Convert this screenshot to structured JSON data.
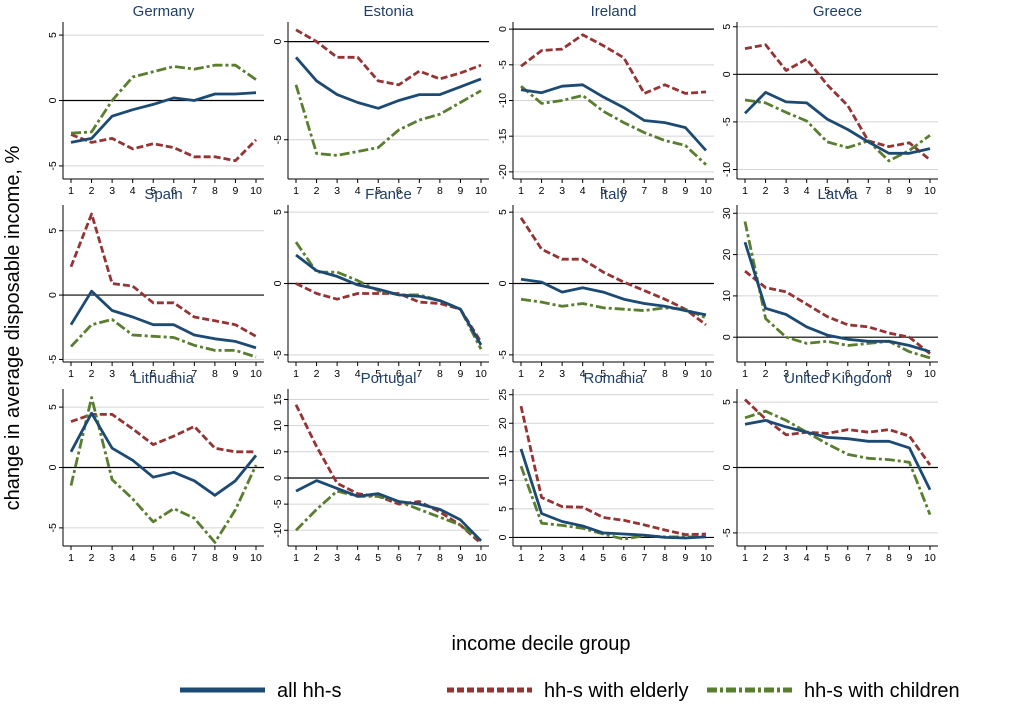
{
  "chart_data": {
    "type": "line",
    "x": [
      1,
      2,
      3,
      4,
      5,
      6,
      7,
      8,
      9,
      10
    ],
    "xlabel": "income decile group",
    "ylabel": "change in average disposable income, %",
    "legend": {
      "placement": "bottom",
      "entries": [
        {
          "name": "all hh-s",
          "color": "#1c4a73",
          "style": "solid"
        },
        {
          "name": "hh-s with elderly",
          "color": "#943434",
          "style": "dash"
        },
        {
          "name": "hh-s with children",
          "color": "#5a7e2f",
          "style": "dashdot"
        }
      ]
    },
    "panels": [
      {
        "title": "Germany",
        "ylim": [
          -6,
          6
        ],
        "yticks": [
          -5,
          0,
          5
        ],
        "series": [
          {
            "name": "all hh-s",
            "values": [
              -3.2,
              -2.9,
              -1.2,
              -0.7,
              -0.3,
              0.2,
              0.0,
              0.5,
              0.5,
              0.6
            ]
          },
          {
            "name": "hh-s with elderly",
            "values": [
              -2.6,
              -3.2,
              -2.9,
              -3.7,
              -3.3,
              -3.6,
              -4.3,
              -4.3,
              -4.6,
              -3.0
            ]
          },
          {
            "name": "hh-s with children",
            "values": [
              -2.5,
              -2.4,
              0.0,
              1.8,
              2.2,
              2.6,
              2.4,
              2.7,
              2.7,
              1.6
            ]
          }
        ]
      },
      {
        "title": "Estonia",
        "ylim": [
          -7,
          1
        ],
        "yticks": [
          -5,
          0
        ],
        "series": [
          {
            "name": "all hh-s",
            "values": [
              -0.8,
              -2.0,
              -2.7,
              -3.1,
              -3.4,
              -3.0,
              -2.7,
              -2.7,
              -2.3,
              -1.9
            ]
          },
          {
            "name": "hh-s with elderly",
            "values": [
              0.6,
              0.0,
              -0.8,
              -0.8,
              -2.0,
              -2.2,
              -1.5,
              -1.9,
              -1.6,
              -1.2
            ]
          },
          {
            "name": "hh-s with children",
            "values": [
              -2.2,
              -5.7,
              -5.8,
              -5.6,
              -5.4,
              -4.5,
              -4.0,
              -3.7,
              -3.1,
              -2.5
            ]
          }
        ]
      },
      {
        "title": "Ireland",
        "ylim": [
          -21,
          1
        ],
        "yticks": [
          -20,
          -15,
          -10,
          -5,
          0
        ],
        "series": [
          {
            "name": "all hh-s",
            "values": [
              -8.5,
              -8.9,
              -8.0,
              -7.8,
              -9.5,
              -11.0,
              -12.8,
              -13.1,
              -13.8,
              -17.0
            ]
          },
          {
            "name": "hh-s with elderly",
            "values": [
              -5.2,
              -3.0,
              -2.8,
              -0.8,
              -2.3,
              -4.0,
              -9.0,
              -7.8,
              -9.0,
              -8.8
            ]
          },
          {
            "name": "hh-s with children",
            "values": [
              -8.0,
              -10.4,
              -10.0,
              -9.3,
              -11.5,
              -13.1,
              -14.5,
              -15.6,
              -16.3,
              -19.0
            ]
          }
        ]
      },
      {
        "title": "Greece",
        "ylim": [
          -11,
          5.5
        ],
        "yticks": [
          -10,
          -5,
          0,
          5
        ],
        "series": [
          {
            "name": "all hh-s",
            "values": [
              -4.1,
              -1.9,
              -2.9,
              -3.0,
              -4.7,
              -5.8,
              -7.1,
              -8.3,
              -8.3,
              -7.8
            ]
          },
          {
            "name": "hh-s with elderly",
            "values": [
              2.7,
              3.1,
              0.4,
              1.6,
              -1.1,
              -3.3,
              -7.0,
              -7.6,
              -7.2,
              -9.0
            ]
          },
          {
            "name": "hh-s with children",
            "values": [
              -2.7,
              -3.0,
              -4.0,
              -4.9,
              -7.1,
              -7.7,
              -7.0,
              -9.1,
              -8.0,
              -6.4
            ]
          }
        ]
      },
      {
        "title": "Spain",
        "ylim": [
          -5.2,
          7
        ],
        "yticks": [
          -5,
          0,
          5
        ],
        "series": [
          {
            "name": "all hh-s",
            "values": [
              -2.3,
              0.3,
              -1.2,
              -1.7,
              -2.3,
              -2.3,
              -3.1,
              -3.4,
              -3.6,
              -4.1
            ]
          },
          {
            "name": "hh-s with elderly",
            "values": [
              2.2,
              6.3,
              0.9,
              0.7,
              -0.6,
              -0.6,
              -1.7,
              -2.0,
              -2.3,
              -3.2
            ]
          },
          {
            "name": "hh-s with children",
            "values": [
              -4.0,
              -2.3,
              -1.9,
              -3.1,
              -3.2,
              -3.3,
              -3.9,
              -4.3,
              -4.3,
              -4.8
            ]
          }
        ]
      },
      {
        "title": "France",
        "ylim": [
          -5.5,
          5.5
        ],
        "yticks": [
          -5,
          0,
          5
        ],
        "series": [
          {
            "name": "all hh-s",
            "values": [
              2.0,
              0.9,
              0.5,
              -0.1,
              -0.4,
              -0.8,
              -0.9,
              -1.2,
              -1.8,
              -4.3
            ]
          },
          {
            "name": "hh-s with elderly",
            "values": [
              0.0,
              -0.7,
              -1.1,
              -0.7,
              -0.7,
              -0.7,
              -1.3,
              -1.4,
              -1.8,
              -4.1
            ]
          },
          {
            "name": "hh-s with children",
            "values": [
              2.9,
              0.8,
              0.8,
              0.2,
              -0.5,
              -0.8,
              -0.8,
              -1.2,
              -1.8,
              -4.6
            ]
          }
        ]
      },
      {
        "title": "Italy",
        "ylim": [
          -5.5,
          5.5
        ],
        "yticks": [
          -5,
          0,
          5
        ],
        "series": [
          {
            "name": "all hh-s",
            "values": [
              0.3,
              0.1,
              -0.6,
              -0.3,
              -0.6,
              -1.1,
              -1.4,
              -1.6,
              -1.9,
              -2.2
            ]
          },
          {
            "name": "hh-s with elderly",
            "values": [
              4.6,
              2.4,
              1.7,
              1.7,
              0.8,
              0.1,
              -0.5,
              -1.1,
              -1.8,
              -2.9
            ]
          },
          {
            "name": "hh-s with children",
            "values": [
              -1.1,
              -1.3,
              -1.6,
              -1.4,
              -1.7,
              -1.8,
              -1.9,
              -1.7,
              -1.8,
              -2.4
            ]
          }
        ]
      },
      {
        "title": "Latvia",
        "ylim": [
          -6,
          32
        ],
        "yticks": [
          0,
          10,
          20,
          30
        ],
        "series": [
          {
            "name": "all hh-s",
            "values": [
              23.0,
              7.0,
              5.5,
              2.5,
              0.5,
              -0.5,
              -1.0,
              -1.0,
              -2.0,
              -3.5
            ]
          },
          {
            "name": "hh-s with elderly",
            "values": [
              16.0,
              12.0,
              11.0,
              8.0,
              5.0,
              3.0,
              2.5,
              1.0,
              0.0,
              -4.0
            ]
          },
          {
            "name": "hh-s with children",
            "values": [
              28.0,
              4.5,
              0.0,
              -1.5,
              -1.0,
              -2.0,
              -1.5,
              -1.0,
              -3.5,
              -5.0
            ]
          }
        ]
      },
      {
        "title": "Lithuania",
        "ylim": [
          -6.5,
          6.5
        ],
        "yticks": [
          -5,
          0,
          5
        ],
        "series": [
          {
            "name": "all hh-s",
            "values": [
              1.3,
              4.5,
              1.6,
              0.6,
              -0.8,
              -0.4,
              -1.1,
              -2.3,
              -1.1,
              1.0
            ]
          },
          {
            "name": "hh-s with elderly",
            "values": [
              3.8,
              4.4,
              4.4,
              3.2,
              1.9,
              2.6,
              3.4,
              1.6,
              1.3,
              1.3
            ]
          },
          {
            "name": "hh-s with children",
            "values": [
              -1.5,
              5.8,
              -1.0,
              -2.6,
              -4.5,
              -3.4,
              -4.2,
              -6.2,
              -3.5,
              0.2
            ]
          }
        ]
      },
      {
        "title": "Portugal",
        "ylim": [
          -13,
          17
        ],
        "yticks": [
          -10,
          -5,
          0,
          5,
          10,
          15
        ],
        "series": [
          {
            "name": "all hh-s",
            "values": [
              -2.5,
              -0.5,
              -2.0,
              -3.5,
              -3.0,
              -4.5,
              -5.0,
              -6.0,
              -8.0,
              -12.0
            ]
          },
          {
            "name": "hh-s with elderly",
            "values": [
              14.0,
              6.0,
              -1.0,
              -3.0,
              -3.5,
              -5.0,
              -4.5,
              -6.5,
              -9.0,
              -12.5
            ]
          },
          {
            "name": "hh-s with children",
            "values": [
              -10.0,
              -6.0,
              -2.5,
              -3.5,
              -3.5,
              -4.5,
              -6.0,
              -7.5,
              -9.0,
              -12.0
            ]
          }
        ]
      },
      {
        "title": "Romania",
        "ylim": [
          -1.5,
          26
        ],
        "yticks": [
          0,
          5,
          10,
          15,
          20,
          25
        ],
        "series": [
          {
            "name": "all hh-s",
            "values": [
              15.5,
              4.2,
              2.8,
              2.0,
              0.8,
              0.6,
              0.4,
              0.0,
              -0.1,
              0.1
            ]
          },
          {
            "name": "hh-s with elderly",
            "values": [
              23.0,
              7.0,
              5.4,
              5.3,
              3.5,
              3.0,
              2.2,
              1.3,
              0.5,
              0.6
            ]
          },
          {
            "name": "hh-s with children",
            "values": [
              12.5,
              2.5,
              2.1,
              1.6,
              0.6,
              -0.3,
              0.3,
              0.1,
              0.1,
              0.1
            ]
          }
        ]
      },
      {
        "title": "United Kingdom",
        "ylim": [
          -6,
          6
        ],
        "yticks": [
          -5,
          0,
          5
        ],
        "series": [
          {
            "name": "all hh-s",
            "values": [
              3.3,
              3.6,
              3.1,
              2.7,
              2.3,
              2.2,
              2.0,
              2.0,
              1.5,
              -1.7
            ]
          },
          {
            "name": "hh-s with elderly",
            "values": [
              5.2,
              3.7,
              2.5,
              2.7,
              2.6,
              2.9,
              2.7,
              2.9,
              2.4,
              0.2
            ]
          },
          {
            "name": "hh-s with children",
            "values": [
              3.8,
              4.3,
              3.6,
              2.7,
              1.8,
              1.0,
              0.7,
              0.6,
              0.4,
              -3.6
            ]
          }
        ]
      }
    ]
  }
}
